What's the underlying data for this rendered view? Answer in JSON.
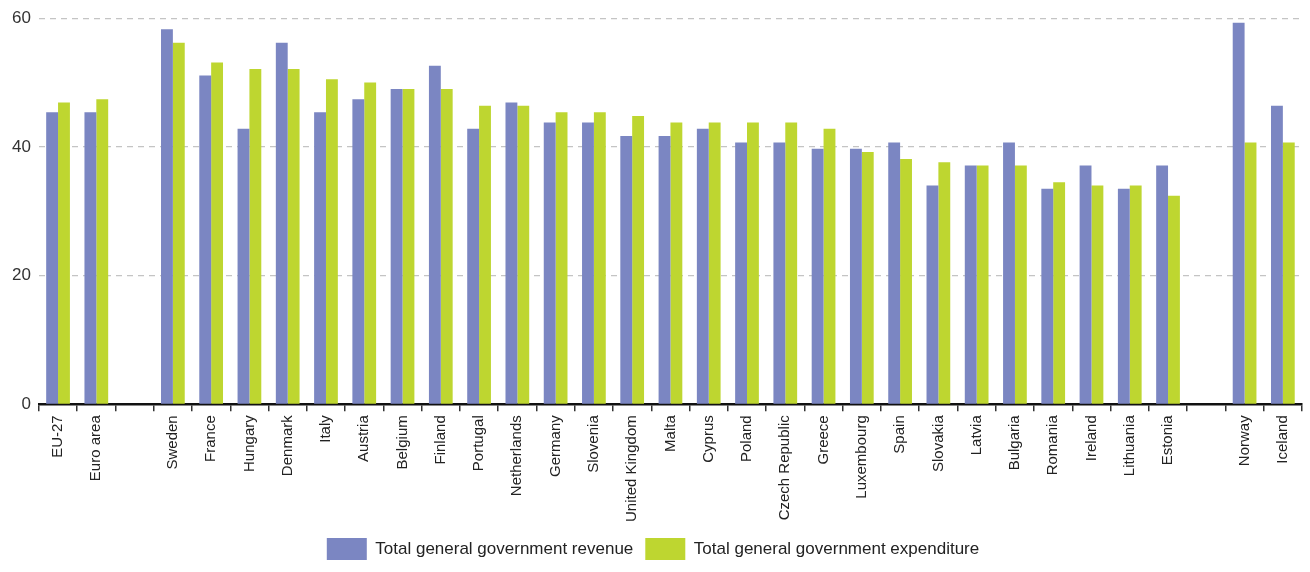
{
  "chart_data": {
    "type": "bar",
    "categories": [
      "EU-27",
      "Euro area",
      null,
      "Sweden",
      "France",
      "Hungary",
      "Denmark",
      "Italy",
      "Austria",
      "Belgium",
      "Finland",
      "Portugal",
      "Netherlands",
      "Germany",
      "Slovenia",
      "United Kingdom",
      "Malta",
      "Cyprus",
      "Poland",
      "Czech Republic",
      "Greece",
      "Luxembourg",
      "Spain",
      "Slovakia",
      "Latvia",
      "Bulgaria",
      "Romania",
      "Ireland",
      "Lithuania",
      "Estonia",
      null,
      "Norway",
      "Iceland"
    ],
    "series": [
      {
        "name": "Total general government revenue",
        "color": "#7b86c2",
        "values": [
          45.4,
          45.4,
          null,
          58.3,
          51.1,
          42.8,
          56.2,
          45.4,
          47.4,
          49.0,
          52.6,
          42.8,
          46.9,
          43.8,
          43.8,
          41.7,
          41.7,
          42.8,
          40.7,
          40.7,
          39.7,
          39.7,
          40.7,
          34.0,
          37.1,
          40.7,
          33.5,
          37.1,
          33.5,
          37.1,
          null,
          59.3,
          46.4
        ]
      },
      {
        "name": "Total general government expenditure",
        "color": "#bed630",
        "values": [
          46.9,
          47.4,
          null,
          56.2,
          53.1,
          52.1,
          52.1,
          50.5,
          50.0,
          49.0,
          49.0,
          46.4,
          46.4,
          45.4,
          45.4,
          44.8,
          43.8,
          43.8,
          43.8,
          43.8,
          42.8,
          39.2,
          38.1,
          37.6,
          37.1,
          37.1,
          34.5,
          34.0,
          34.0,
          32.4,
          null,
          40.7,
          40.7
        ]
      }
    ],
    "ylim": [
      0,
      60
    ],
    "yticks": [
      0,
      20,
      40,
      60
    ],
    "grid": "y",
    "legend": "bottom"
  }
}
